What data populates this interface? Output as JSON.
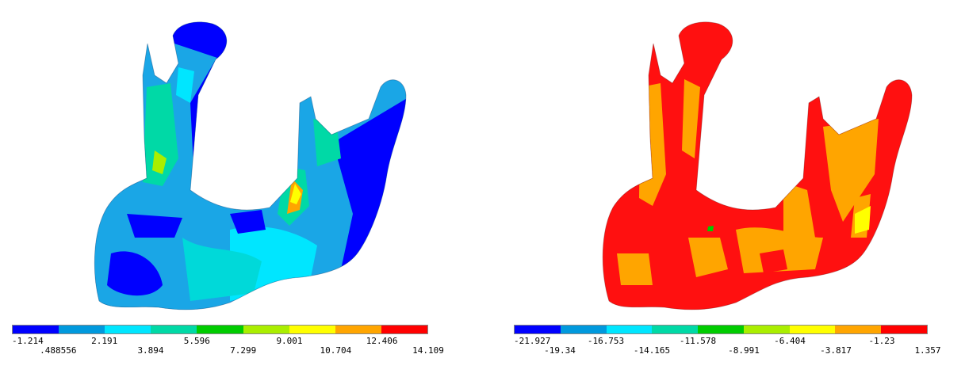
{
  "plots": [
    {
      "colormap": [
        "#0000ff",
        "#0099dd",
        "#00e6ff",
        "#00d9a6",
        "#00cc00",
        "#aaee00",
        "#ffff00",
        "#ffa500",
        "#ff0000"
      ],
      "legend_top": [
        "-1.214",
        "2.191",
        "5.596",
        "9.001",
        "12.406"
      ],
      "legend_bottom": [
        ".488556",
        "3.894",
        "7.299",
        "10.704",
        "14.109"
      ]
    },
    {
      "colormap": [
        "#0000ff",
        "#0099dd",
        "#00e6ff",
        "#00d9a6",
        "#00cc00",
        "#aaee00",
        "#ffff00",
        "#ffa500",
        "#ff0000"
      ],
      "legend_top": [
        "-21.927",
        "-16.753",
        "-11.578",
        "-6.404",
        "-1.23"
      ],
      "legend_bottom": [
        "-19.34",
        "-14.165",
        "-8.991",
        "-3.817",
        "1.357"
      ]
    }
  ]
}
